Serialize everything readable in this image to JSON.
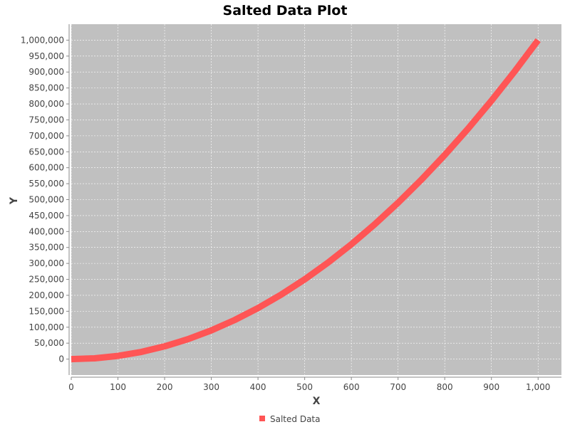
{
  "chart_data": {
    "type": "line",
    "title": "Salted Data Plot",
    "xlabel": "X",
    "ylabel": "Y",
    "xlim": [
      0,
      1050
    ],
    "ylim": [
      -50000,
      1050000
    ],
    "x_ticks": [
      0,
      100,
      200,
      300,
      400,
      500,
      600,
      700,
      800,
      900,
      1000
    ],
    "x_tick_labels": [
      "0",
      "100",
      "200",
      "300",
      "400",
      "500",
      "600",
      "700",
      "800",
      "900",
      "1,000"
    ],
    "y_ticks": [
      0,
      50000,
      100000,
      150000,
      200000,
      250000,
      300000,
      350000,
      400000,
      450000,
      500000,
      550000,
      600000,
      650000,
      700000,
      750000,
      800000,
      850000,
      900000,
      950000,
      1000000
    ],
    "y_tick_labels": [
      "0",
      "50,000",
      "100,000",
      "150,000",
      "200,000",
      "250,000",
      "300,000",
      "350,000",
      "400,000",
      "450,000",
      "500,000",
      "550,000",
      "600,000",
      "650,000",
      "700,000",
      "750,000",
      "800,000",
      "850,000",
      "900,000",
      "950,000",
      "1,000,000"
    ],
    "grid": true,
    "legend_position": "bottom",
    "series": [
      {
        "name": "Salted Data",
        "color": "#ff5555",
        "x": [
          0,
          50,
          100,
          150,
          200,
          250,
          300,
          350,
          400,
          450,
          500,
          550,
          600,
          650,
          700,
          750,
          800,
          850,
          900,
          950,
          1000
        ],
        "y": [
          0,
          2500,
          10000,
          22500,
          40000,
          62500,
          90000,
          122500,
          160000,
          202500,
          250000,
          302500,
          360000,
          422500,
          490000,
          562500,
          640000,
          722500,
          810000,
          902500,
          1000000
        ]
      }
    ],
    "plot_background": "#c0c0c0",
    "grid_color": "#ffffff"
  }
}
